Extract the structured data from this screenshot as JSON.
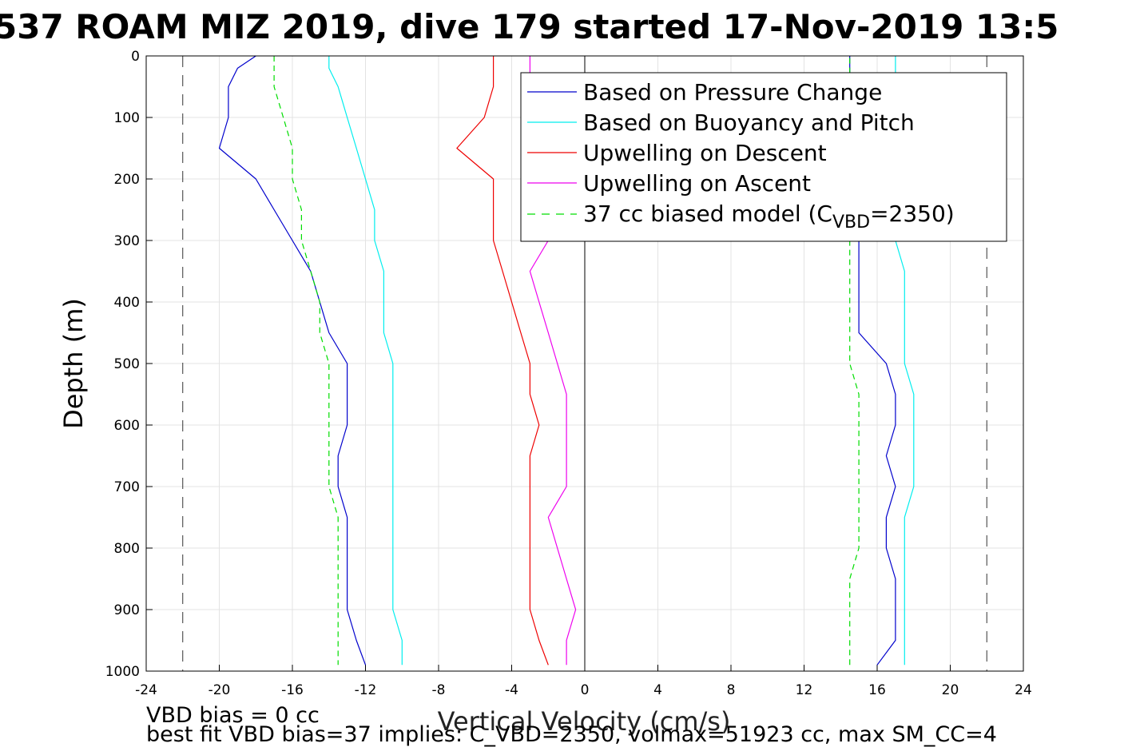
{
  "chart_data": {
    "type": "line",
    "title": "537 ROAM MIZ 2019, dive 179 started 17-Nov-2019 13:5",
    "xlabel": "Vertical Velocity (cm/s)",
    "ylabel": "Depth (m)",
    "xlim": [
      -24,
      24
    ],
    "ylim": [
      0,
      1000
    ],
    "y_reversed": true,
    "grid": true,
    "legend_position": "top-right",
    "xticks": [
      "-24",
      "-20",
      "-16",
      "-12",
      "-8",
      "-4",
      "0",
      "4",
      "8",
      "12",
      "16",
      "20",
      "24"
    ],
    "yticks": [
      "0",
      "100",
      "200",
      "300",
      "400",
      "500",
      "600",
      "700",
      "800",
      "900",
      "1000"
    ],
    "reference_lines": {
      "x": [
        -22,
        0,
        22
      ]
    },
    "legend": [
      "Based on Pressure Change",
      "Based on Buoyancy and Pitch",
      "Upwelling on Descent",
      "Upwelling on Ascent",
      "37 cc biased model (C",
      "VBD",
      "=2350)"
    ],
    "series": [
      {
        "name": "Based on Pressure Change",
        "color": "#0000cc",
        "style": "solid",
        "descent": {
          "depth": [
            0,
            20,
            50,
            100,
            150,
            200,
            250,
            300,
            350,
            400,
            450,
            500,
            550,
            600,
            650,
            700,
            750,
            800,
            850,
            900,
            950,
            990
          ],
          "velocity": [
            -18,
            -19,
            -19.5,
            -19.5,
            -20,
            -18,
            -17,
            -16,
            -15,
            -14.5,
            -14,
            -13,
            -13,
            -13,
            -13.5,
            -13.5,
            -13,
            -13,
            -13,
            -13,
            -12.5,
            -12
          ]
        },
        "ascent": {
          "depth": [
            990,
            950,
            900,
            850,
            800,
            750,
            700,
            650,
            600,
            550,
            500,
            450,
            400,
            350,
            300,
            250,
            200,
            150,
            100,
            50,
            20,
            0
          ],
          "velocity": [
            16,
            17,
            17,
            17,
            16.5,
            16.5,
            17,
            16.5,
            17,
            17,
            16.5,
            15,
            15,
            15,
            15,
            14.5,
            14.5,
            14.5,
            14.5,
            14.5,
            14.5,
            14.5
          ]
        }
      },
      {
        "name": "Based on Buoyancy and Pitch",
        "color": "#00eeee",
        "style": "solid",
        "descent": {
          "depth": [
            0,
            20,
            50,
            100,
            150,
            200,
            250,
            300,
            350,
            400,
            450,
            500,
            550,
            600,
            650,
            700,
            750,
            800,
            850,
            900,
            950,
            990
          ],
          "velocity": [
            -14,
            -14,
            -13.5,
            -13,
            -12.5,
            -12,
            -11.5,
            -11.5,
            -11,
            -11,
            -11,
            -10.5,
            -10.5,
            -10.5,
            -10.5,
            -10.5,
            -10.5,
            -10.5,
            -10.5,
            -10.5,
            -10,
            -10
          ]
        },
        "ascent": {
          "depth": [
            990,
            950,
            900,
            850,
            800,
            750,
            700,
            650,
            600,
            550,
            500,
            450,
            400,
            350,
            300,
            250,
            200,
            150,
            100,
            50,
            20,
            0
          ],
          "velocity": [
            17.5,
            17.5,
            17.5,
            17.5,
            17.5,
            17.5,
            18,
            18,
            18,
            18,
            17.5,
            17.5,
            17.5,
            17.5,
            17,
            17,
            17,
            17,
            17,
            17,
            17,
            17
          ]
        }
      },
      {
        "name": "Upwelling on Descent",
        "color": "#ee0000",
        "style": "solid",
        "descent": {
          "depth": [
            0,
            20,
            50,
            100,
            150,
            200,
            250,
            300,
            350,
            400,
            450,
            500,
            550,
            600,
            650,
            700,
            750,
            800,
            850,
            900,
            950,
            990
          ],
          "velocity": [
            -5,
            -5,
            -5,
            -5.5,
            -7,
            -5,
            -5,
            -5,
            -4.5,
            -4,
            -3.5,
            -3,
            -3,
            -2.5,
            -3,
            -3,
            -3,
            -3,
            -3,
            -3,
            -2.5,
            -2
          ]
        }
      },
      {
        "name": "Upwelling on Ascent",
        "color": "#ee00ee",
        "style": "solid",
        "ascent": {
          "depth": [
            990,
            950,
            900,
            850,
            800,
            750,
            700,
            650,
            600,
            550,
            500,
            450,
            400,
            350,
            300,
            250,
            200,
            150,
            100,
            50,
            20,
            0
          ],
          "velocity": [
            -1,
            -1,
            -0.5,
            -1,
            -1.5,
            -2,
            -1,
            -1,
            -1,
            -1,
            -1.5,
            -2,
            -2.5,
            -3,
            -2,
            -3,
            -3,
            -3,
            -3,
            -3,
            -3,
            -3
          ]
        }
      },
      {
        "name": "37 cc biased model (C_VBD=2350)",
        "color": "#00dd00",
        "style": "dashed",
        "descent": {
          "depth": [
            0,
            20,
            50,
            100,
            150,
            200,
            250,
            300,
            350,
            400,
            450,
            500,
            550,
            600,
            650,
            700,
            750,
            800,
            850,
            900,
            950,
            990
          ],
          "velocity": [
            -17,
            -17,
            -17,
            -16.5,
            -16,
            -16,
            -15.5,
            -15.5,
            -15,
            -14.5,
            -14.5,
            -14,
            -14,
            -14,
            -14,
            -14,
            -13.5,
            -13.5,
            -13.5,
            -13.5,
            -13.5,
            -13.5
          ]
        },
        "ascent": {
          "depth": [
            990,
            950,
            900,
            850,
            800,
            750,
            700,
            650,
            600,
            550,
            500,
            450,
            400,
            350,
            300,
            250,
            200,
            150,
            100,
            50,
            20,
            0
          ],
          "velocity": [
            14.5,
            14.5,
            14.5,
            14.5,
            15,
            15,
            15,
            15,
            15,
            15,
            14.5,
            14.5,
            14.5,
            14.5,
            14.5,
            14.5,
            14.5,
            14.5,
            14.5,
            14.5,
            14.5,
            14.5
          ]
        }
      }
    ],
    "annotations": [
      "VBD bias = 0 cc",
      "best fit VBD bias=37 implies: C_VBD=2350, volmax=51923 cc, max SM_CC=4"
    ]
  }
}
